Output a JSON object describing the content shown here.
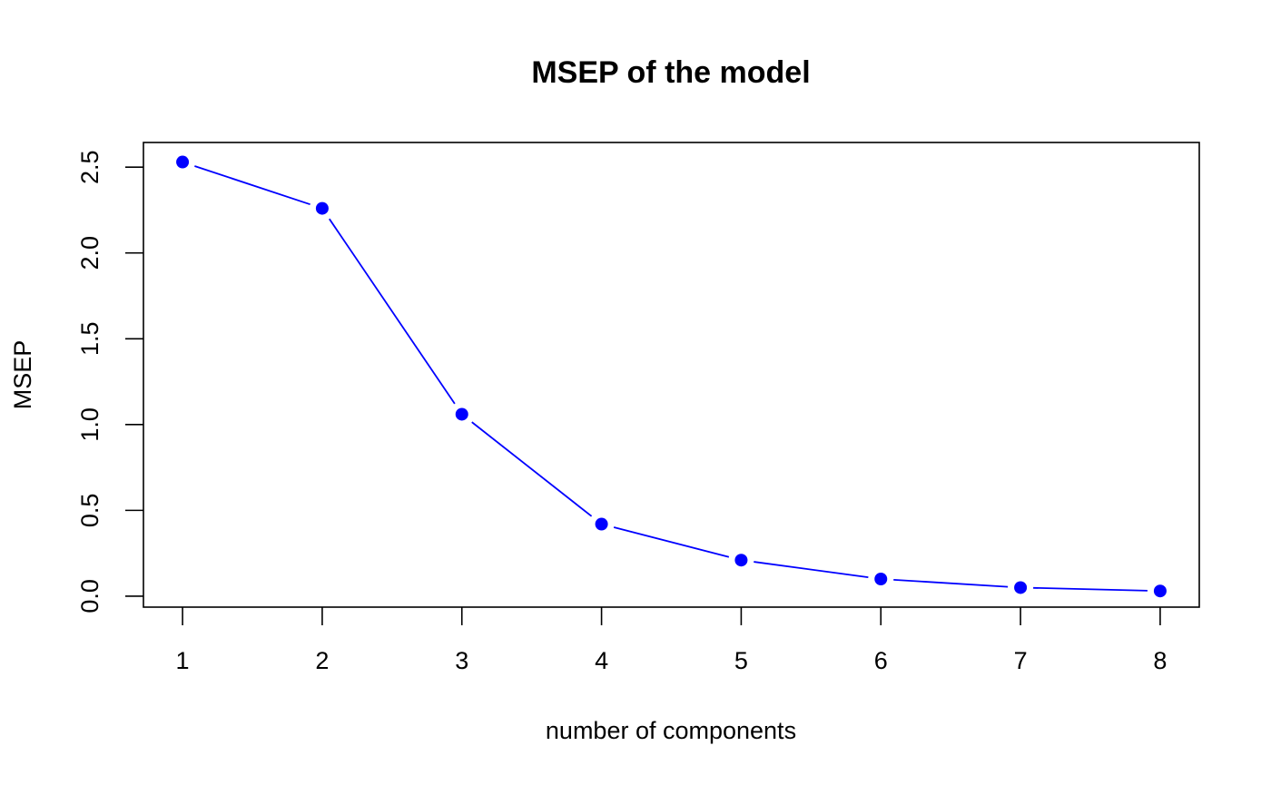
{
  "colors": {
    "series": "#0000ff",
    "axis": "#000000",
    "background": "#ffffff"
  },
  "chart_data": {
    "type": "line",
    "title": "MSEP of the model",
    "xlabel": "number of components",
    "ylabel": "MSEP",
    "x": [
      1,
      2,
      3,
      4,
      5,
      6,
      7,
      8
    ],
    "xticks": [
      "1",
      "2",
      "3",
      "4",
      "5",
      "6",
      "7",
      "8"
    ],
    "yticks": [
      "0.0",
      "0.5",
      "1.0",
      "1.5",
      "2.0",
      "2.5"
    ],
    "xlim": [
      0.72,
      8.28
    ],
    "ylim": [
      -0.064,
      2.644
    ],
    "series": [
      {
        "values": [
          2.53,
          2.26,
          1.06,
          0.42,
          0.21,
          0.1,
          0.05,
          0.03
        ],
        "color": "#0000ff",
        "marker": "filled-circle",
        "line_style": "solid-gapped"
      }
    ],
    "grid": false,
    "legend": "none"
  }
}
